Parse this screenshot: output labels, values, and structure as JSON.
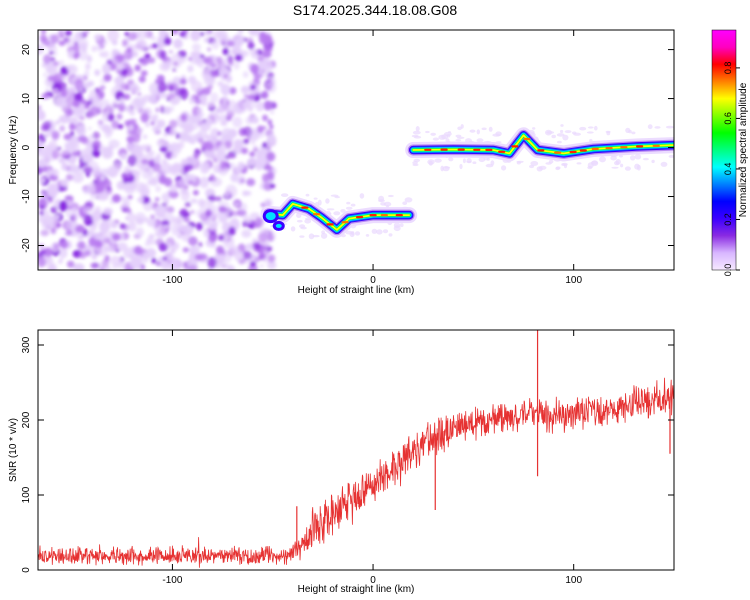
{
  "title": "S174.2025.344.18.08.G08",
  "chart_data": [
    {
      "type": "heatmap",
      "xlabel": "Height of straight line (km)",
      "ylabel": "Frequency (Hz)",
      "xlim": [
        -167,
        150
      ],
      "ylim": [
        -25,
        24
      ],
      "xticks": [
        -100,
        0,
        100
      ],
      "yticks": [
        -20,
        -10,
        0,
        10,
        20
      ],
      "colorbar": {
        "label": "Normalized spectral amplitude",
        "range": [
          0,
          0.95
        ],
        "ticks": [
          "0.0",
          "0.2",
          "0.4",
          "0.6",
          "0.8"
        ],
        "tick_values": [
          0,
          0.2,
          0.4,
          0.6,
          0.8
        ],
        "colors": [
          "#f6eaff",
          "#d8b6ff",
          "#8a2be2",
          "#3b00ff",
          "#0000ff",
          "#0080ff",
          "#00ffff",
          "#00ff80",
          "#00ff00",
          "#80ff00",
          "#ffff00",
          "#ff8000",
          "#ff0000",
          "#ff00c0",
          "#ff00ff"
        ]
      },
      "noise_region": {
        "x": [
          -167,
          -50
        ],
        "y": [
          -25,
          24
        ]
      },
      "ridge": [
        {
          "x": -52,
          "y": -13.5
        },
        {
          "x": -45,
          "y": -13.8
        },
        {
          "x": -40,
          "y": -11.5
        },
        {
          "x": -32,
          "y": -12.5
        },
        {
          "x": -26,
          "y": -14.2
        },
        {
          "x": -18,
          "y": -16.8
        },
        {
          "x": -12,
          "y": -14.5
        },
        {
          "x": 0,
          "y": -13.8
        },
        {
          "x": 10,
          "y": -13.8
        },
        {
          "x": 18,
          "y": -13.8
        },
        {
          "x": 20,
          "y": -0.5
        },
        {
          "x": 40,
          "y": -0.4
        },
        {
          "x": 60,
          "y": -0.5
        },
        {
          "x": 68,
          "y": -1.2
        },
        {
          "x": 75,
          "y": 2.5
        },
        {
          "x": 82,
          "y": -0.5
        },
        {
          "x": 95,
          "y": -1.2
        },
        {
          "x": 110,
          "y": -0.3
        },
        {
          "x": 130,
          "y": 0.2
        },
        {
          "x": 150,
          "y": 0.5
        }
      ]
    },
    {
      "type": "line",
      "xlabel": "Height of straight line (km)",
      "ylabel": "SNR (10 * v/v)",
      "xlim": [
        -167,
        150
      ],
      "ylim": [
        0,
        320
      ],
      "xticks": [
        -100,
        0,
        100
      ],
      "yticks": [
        0,
        100,
        200,
        300
      ],
      "series": [
        {
          "name": "SNR",
          "color": "#e63232",
          "x": [
            -167,
            -150,
            -120,
            -90,
            -60,
            -42,
            -38,
            -35,
            -30,
            -20,
            -10,
            -5,
            0,
            10,
            20,
            30,
            35,
            40,
            50,
            60,
            70,
            80,
            90,
            100,
            110,
            120,
            130,
            140,
            150
          ],
          "y": [
            20,
            19,
            19,
            19,
            19,
            19,
            30,
            40,
            55,
            75,
            95,
            105,
            115,
            135,
            160,
            175,
            180,
            190,
            195,
            200,
            205,
            210,
            205,
            210,
            212,
            215,
            222,
            228,
            232
          ],
          "noise_amplitude": [
            12,
            12,
            12,
            12,
            12,
            12,
            18,
            25,
            30,
            30,
            30,
            30,
            28,
            28,
            28,
            28,
            25,
            22,
            22,
            22,
            22,
            22,
            22,
            22,
            22,
            22,
            24,
            25,
            25
          ],
          "spikes": [
            {
              "x": -38,
              "y": 85
            },
            {
              "x": 31,
              "y": 80
            },
            {
              "x": 82,
              "y": 320
            },
            {
              "x": 82,
              "y": 125
            },
            {
              "x": 148,
              "y": 155
            }
          ]
        }
      ]
    }
  ]
}
